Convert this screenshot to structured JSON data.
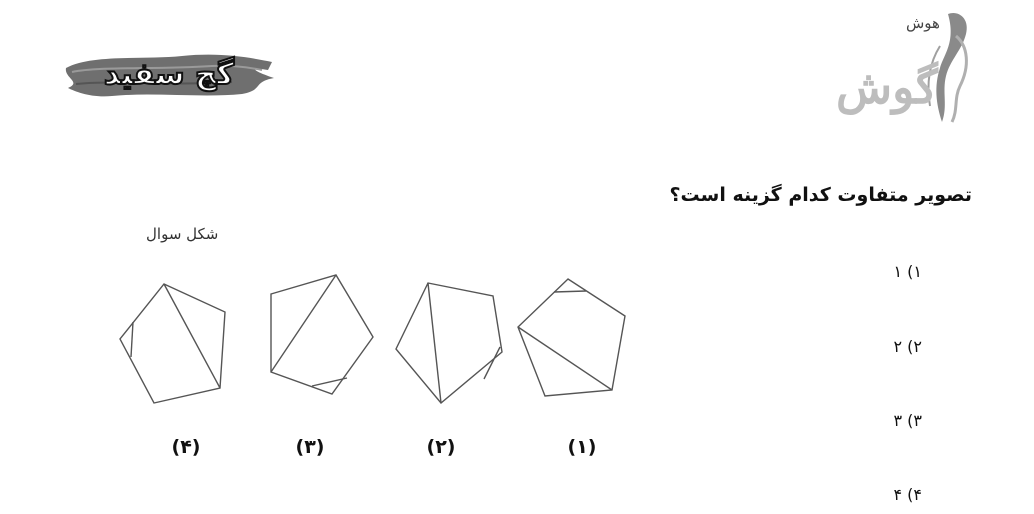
{
  "header": {
    "left_logo_text": "گچ سفید",
    "right_logo_text": "هوش",
    "right_logo_big": "گوش"
  },
  "question": {
    "text": "تصویر متفاوت کدام گزینه است؟",
    "shape_caption": "شکل سوال",
    "figure_labels": [
      "(۱)",
      "(۲)",
      "(۳)",
      "(۴)"
    ],
    "options": [
      "۱) ۱",
      "۲) ۲",
      "۳) ۳",
      "۴) ۴"
    ]
  }
}
